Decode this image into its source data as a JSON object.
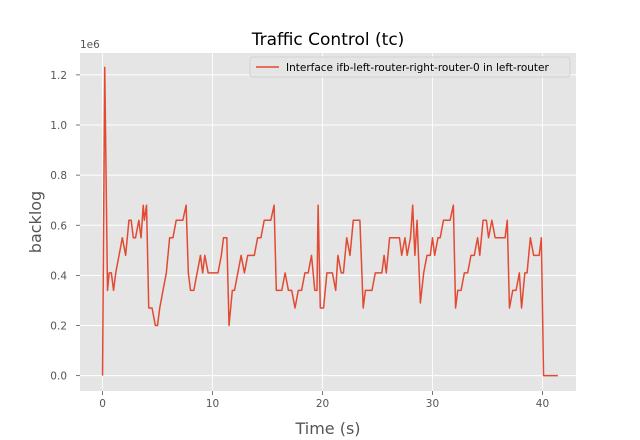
{
  "chart_data": {
    "type": "line",
    "title": "Traffic Control (tc)",
    "xlabel": "Time (s)",
    "ylabel": "backlog",
    "y_offset_label": "1e6",
    "xlim": [
      -2.05,
      43.05
    ],
    "ylim": [
      -0.0613,
      1.2873
    ],
    "xticks": [
      0,
      10,
      20,
      30,
      40
    ],
    "yticks": [
      0.0,
      0.2,
      0.4,
      0.6,
      0.8,
      1.0,
      1.2
    ],
    "xtick_labels": [
      "0",
      "10",
      "20",
      "30",
      "40"
    ],
    "ytick_labels": [
      "0.0",
      "0.2",
      "0.4",
      "0.6",
      "0.8",
      "1.0",
      "1.2"
    ],
    "grid": true,
    "style": "ggplot",
    "legend": {
      "location": "upper right",
      "entries": [
        "Interface ifb-left-router-right-router-0 in left-router"
      ]
    },
    "series": [
      {
        "name": "Interface ifb-left-router-right-router-0 in left-router",
        "color": "#E24A33",
        "x": [
          0,
          0.2,
          0.45,
          0.6,
          0.8,
          1.0,
          1.2,
          1.5,
          1.8,
          2.1,
          2.4,
          2.6,
          2.8,
          3.0,
          3.3,
          3.5,
          3.7,
          3.8,
          4.0,
          4.2,
          4.3,
          4.5,
          4.8,
          5.0,
          5.2,
          5.5,
          5.8,
          6.1,
          6.4,
          6.7,
          7.0,
          7.3,
          7.6,
          7.8,
          8.0,
          8.3,
          8.6,
          8.9,
          9.1,
          9.3,
          9.6,
          9.9,
          10.2,
          10.5,
          10.8,
          11.0,
          11.3,
          11.5,
          11.8,
          12.0,
          12.3,
          12.6,
          12.9,
          13.2,
          13.5,
          13.8,
          14.1,
          14.4,
          14.7,
          15.0,
          15.3,
          15.6,
          15.8,
          16.0,
          16.3,
          16.6,
          16.9,
          17.2,
          17.5,
          17.8,
          18.1,
          18.4,
          18.7,
          19.0,
          19.3,
          19.5,
          19.6,
          19.8,
          20.1,
          20.4,
          20.7,
          20.9,
          21.2,
          21.4,
          21.7,
          21.9,
          22.2,
          22.5,
          22.8,
          23.1,
          23.4,
          23.7,
          23.9,
          24.2,
          24.5,
          24.8,
          25.1,
          25.4,
          25.6,
          25.8,
          26.1,
          26.4,
          26.7,
          27.0,
          27.2,
          27.5,
          27.7,
          28.0,
          28.2,
          28.4,
          28.6,
          28.9,
          29.2,
          29.5,
          29.8,
          30.0,
          30.2,
          30.5,
          30.7,
          31.0,
          31.3,
          31.6,
          31.9,
          32.1,
          32.3,
          32.6,
          32.9,
          33.2,
          33.5,
          33.8,
          34.1,
          34.3,
          34.6,
          34.9,
          35.1,
          35.4,
          35.7,
          36.0,
          36.3,
          36.6,
          36.8,
          37.0,
          37.3,
          37.6,
          37.9,
          38.1,
          38.4,
          38.6,
          38.9,
          39.2,
          39.5,
          39.7,
          39.9,
          40.1,
          40.4,
          41.0,
          41.4
        ],
        "y": [
          0.0,
          1.23,
          0.34,
          0.41,
          0.41,
          0.34,
          0.41,
          0.48,
          0.55,
          0.48,
          0.62,
          0.62,
          0.55,
          0.55,
          0.62,
          0.55,
          0.68,
          0.62,
          0.68,
          0.27,
          0.27,
          0.27,
          0.2,
          0.2,
          0.27,
          0.34,
          0.41,
          0.55,
          0.55,
          0.62,
          0.62,
          0.62,
          0.68,
          0.41,
          0.34,
          0.34,
          0.41,
          0.48,
          0.41,
          0.48,
          0.41,
          0.41,
          0.41,
          0.41,
          0.48,
          0.55,
          0.55,
          0.2,
          0.34,
          0.34,
          0.41,
          0.48,
          0.41,
          0.48,
          0.48,
          0.48,
          0.55,
          0.55,
          0.62,
          0.62,
          0.62,
          0.68,
          0.34,
          0.34,
          0.34,
          0.41,
          0.34,
          0.34,
          0.27,
          0.34,
          0.34,
          0.41,
          0.41,
          0.48,
          0.34,
          0.34,
          0.68,
          0.27,
          0.27,
          0.41,
          0.41,
          0.41,
          0.34,
          0.48,
          0.41,
          0.41,
          0.55,
          0.48,
          0.62,
          0.62,
          0.62,
          0.27,
          0.34,
          0.34,
          0.34,
          0.41,
          0.41,
          0.41,
          0.48,
          0.41,
          0.55,
          0.55,
          0.55,
          0.55,
          0.48,
          0.55,
          0.48,
          0.55,
          0.68,
          0.48,
          0.62,
          0.29,
          0.41,
          0.48,
          0.48,
          0.55,
          0.48,
          0.55,
          0.55,
          0.62,
          0.62,
          0.62,
          0.68,
          0.27,
          0.34,
          0.34,
          0.41,
          0.41,
          0.48,
          0.48,
          0.55,
          0.48,
          0.62,
          0.62,
          0.55,
          0.62,
          0.55,
          0.55,
          0.55,
          0.55,
          0.62,
          0.27,
          0.34,
          0.34,
          0.41,
          0.27,
          0.41,
          0.41,
          0.55,
          0.48,
          0.48,
          0.48,
          0.55,
          0.0,
          0.0,
          0.0,
          0.0
        ]
      }
    ]
  }
}
